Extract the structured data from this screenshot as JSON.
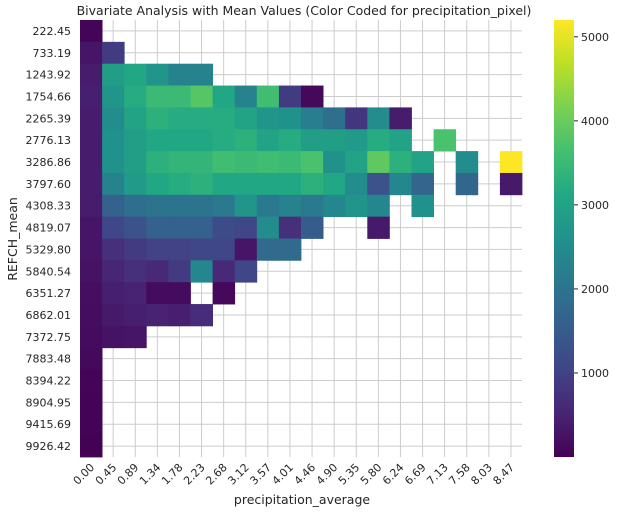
{
  "chart_data": {
    "type": "heatmap",
    "title": "Bivariate Analysis with Mean Values (Color Coded for precipitation_pixel)",
    "xlabel": "precipitation_average",
    "ylabel": "REFCH_mean",
    "x_categories": [
      "0.00",
      "0.45",
      "0.89",
      "1.34",
      "1.78",
      "2.23",
      "2.68",
      "3.12",
      "3.57",
      "4.01",
      "4.46",
      "4.90",
      "5.35",
      "5.80",
      "6.24",
      "6.69",
      "7.13",
      "7.58",
      "8.03",
      "8.47"
    ],
    "y_categories": [
      "222.45",
      "733.19",
      "1243.92",
      "1754.66",
      "2265.39",
      "2776.13",
      "3286.86",
      "3797.60",
      "4308.33",
      "4819.07",
      "5329.80",
      "5840.54",
      "6351.27",
      "6862.01",
      "7372.75",
      "7883.48",
      "8394.22",
      "8904.95",
      "9415.69",
      "9926.42"
    ],
    "values": [
      [
        40,
        null,
        null,
        null,
        null,
        null,
        null,
        null,
        null,
        null,
        null,
        null,
        null,
        null,
        null,
        null,
        null,
        null,
        null,
        null
      ],
      [
        300,
        900,
        null,
        null,
        null,
        null,
        null,
        null,
        null,
        null,
        null,
        null,
        null,
        null,
        null,
        null,
        null,
        null,
        null,
        null
      ],
      [
        400,
        2900,
        3100,
        2700,
        2300,
        2300,
        null,
        null,
        null,
        null,
        null,
        null,
        null,
        null,
        null,
        null,
        null,
        null,
        null,
        null
      ],
      [
        450,
        2700,
        3200,
        3500,
        3500,
        3800,
        3100,
        2300,
        3600,
        900,
        100,
        null,
        null,
        null,
        null,
        null,
        null,
        null,
        null,
        null
      ],
      [
        400,
        2500,
        3000,
        3300,
        3200,
        3200,
        3200,
        3000,
        2700,
        2600,
        2200,
        1900,
        800,
        2500,
        400,
        null,
        null,
        null,
        null,
        null
      ],
      [
        400,
        2600,
        2900,
        3100,
        3100,
        3100,
        3200,
        3300,
        3000,
        3200,
        2900,
        2900,
        2800,
        3200,
        3000,
        null,
        3700,
        null,
        null,
        null
      ],
      [
        400,
        2600,
        2900,
        3300,
        3400,
        3400,
        3600,
        3500,
        3600,
        3500,
        3700,
        2600,
        3000,
        3900,
        3300,
        3000,
        null,
        2500,
        null,
        5200
      ],
      [
        400,
        2300,
        2800,
        3100,
        3200,
        3300,
        3100,
        3100,
        3100,
        3100,
        3300,
        3100,
        2500,
        1300,
        2400,
        1700,
        null,
        1700,
        null,
        350
      ],
      [
        400,
        1600,
        1900,
        2000,
        2000,
        2000,
        2100,
        2700,
        2100,
        2300,
        2100,
        2400,
        2700,
        2400,
        null,
        2600,
        null,
        null,
        null,
        null
      ],
      [
        300,
        1100,
        1300,
        1600,
        1600,
        1600,
        1200,
        1100,
        2500,
        700,
        1500,
        null,
        null,
        350,
        null,
        null,
        null,
        null,
        null,
        null
      ],
      [
        300,
        700,
        900,
        1000,
        1000,
        1100,
        1100,
        300,
        1800,
        1800,
        null,
        null,
        null,
        null,
        null,
        null,
        null,
        null,
        null,
        null
      ],
      [
        250,
        550,
        700,
        600,
        900,
        2400,
        600,
        1100,
        null,
        null,
        null,
        null,
        null,
        null,
        null,
        null,
        null,
        null,
        null,
        null
      ],
      [
        200,
        450,
        500,
        150,
        150,
        null,
        100,
        null,
        null,
        null,
        null,
        null,
        null,
        null,
        null,
        null,
        null,
        null,
        null,
        null
      ],
      [
        180,
        350,
        450,
        500,
        450,
        650,
        null,
        null,
        null,
        null,
        null,
        null,
        null,
        null,
        null,
        null,
        null,
        null,
        null,
        null
      ],
      [
        150,
        250,
        300,
        null,
        null,
        null,
        null,
        null,
        null,
        null,
        null,
        null,
        null,
        null,
        null,
        null,
        null,
        null,
        null,
        null
      ],
      [
        120,
        null,
        null,
        null,
        null,
        null,
        null,
        null,
        null,
        null,
        null,
        null,
        null,
        null,
        null,
        null,
        null,
        null,
        null,
        null
      ],
      [
        50,
        null,
        null,
        null,
        null,
        null,
        null,
        null,
        null,
        null,
        null,
        null,
        null,
        null,
        null,
        null,
        null,
        null,
        null,
        null
      ],
      [
        30,
        null,
        null,
        null,
        null,
        null,
        null,
        null,
        null,
        null,
        null,
        null,
        null,
        null,
        null,
        null,
        null,
        null,
        null,
        null
      ],
      [
        25,
        null,
        null,
        null,
        null,
        null,
        null,
        null,
        null,
        null,
        null,
        null,
        null,
        null,
        null,
        null,
        null,
        null,
        null,
        null
      ],
      [
        20,
        null,
        null,
        null,
        null,
        null,
        null,
        null,
        null,
        null,
        null,
        null,
        null,
        null,
        null,
        null,
        null,
        null,
        null,
        null
      ]
    ],
    "colormap": "viridis",
    "color_range": [
      0,
      5200
    ],
    "colorbar_ticks": [
      "1000",
      "2000",
      "3000",
      "4000",
      "5000"
    ],
    "grid": true
  }
}
